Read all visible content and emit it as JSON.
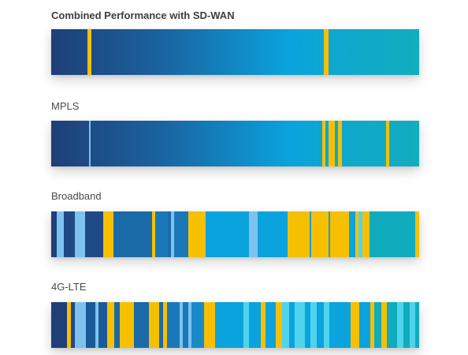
{
  "colors": {
    "navy": "#1f3f77",
    "mid_blue": "#1a78b8",
    "bright_blue": "#0aa3dd",
    "teal": "#10abbd",
    "light_blue": "#7ec2ef",
    "cyan": "#4fd4ee",
    "yellow": "#f6c000"
  },
  "panels": [
    {
      "title": "Combined Performance with SD-WAN",
      "bold": true,
      "background": "linear-gradient(90deg, #1f3f77 0%, #1a63a0 30%, #0aa3dd 65%, #0ea7d2 75%, #12adbd 100%)",
      "segments": [
        {
          "start": 0.099,
          "end": 0.11,
          "color": "#f6c000"
        },
        {
          "start": 0.741,
          "end": 0.753,
          "color": "#f6c000"
        }
      ]
    },
    {
      "title": "MPLS",
      "bold": false,
      "background": "linear-gradient(90deg, #1f3f77 0%, #1a63a0 30%, #0aa3dd 65%, #0ea7d2 75%, #12adbd 100%)",
      "segments": [
        {
          "start": 0.103,
          "end": 0.108,
          "color": "#7ec2ef"
        },
        {
          "start": 0.737,
          "end": 0.746,
          "color": "#f6c000"
        },
        {
          "start": 0.754,
          "end": 0.77,
          "color": "#f6c000"
        },
        {
          "start": 0.78,
          "end": 0.79,
          "color": "#f6c000"
        },
        {
          "start": 0.91,
          "end": 0.918,
          "color": "#f6c000"
        }
      ]
    },
    {
      "title": "Broadband",
      "bold": false,
      "background": "#1a6aa8",
      "segments": [
        {
          "start": 0.0,
          "end": 0.015,
          "color": "#1f3f77"
        },
        {
          "start": 0.015,
          "end": 0.034,
          "color": "#7ec2ef"
        },
        {
          "start": 0.034,
          "end": 0.064,
          "color": "#1f4a85"
        },
        {
          "start": 0.064,
          "end": 0.092,
          "color": "#7ec2ef"
        },
        {
          "start": 0.092,
          "end": 0.141,
          "color": "#1f4a85"
        },
        {
          "start": 0.141,
          "end": 0.169,
          "color": "#f6c000"
        },
        {
          "start": 0.169,
          "end": 0.274,
          "color": "#1a6aa8"
        },
        {
          "start": 0.274,
          "end": 0.282,
          "color": "#f6c000"
        },
        {
          "start": 0.282,
          "end": 0.317,
          "color": "#1a78b8"
        },
        {
          "start": 0.325,
          "end": 0.334,
          "color": "#7ec2ef"
        },
        {
          "start": 0.334,
          "end": 0.372,
          "color": "#1a78b8"
        },
        {
          "start": 0.372,
          "end": 0.42,
          "color": "#f6c000"
        },
        {
          "start": 0.42,
          "end": 0.537,
          "color": "#0aa3dd"
        },
        {
          "start": 0.537,
          "end": 0.561,
          "color": "#7ec2ef"
        },
        {
          "start": 0.561,
          "end": 0.642,
          "color": "#0aa3dd"
        },
        {
          "start": 0.642,
          "end": 0.702,
          "color": "#f6c000"
        },
        {
          "start": 0.702,
          "end": 0.706,
          "color": "#0aa3dd"
        },
        {
          "start": 0.706,
          "end": 0.754,
          "color": "#f6c000"
        },
        {
          "start": 0.754,
          "end": 0.758,
          "color": "#0aa3dd"
        },
        {
          "start": 0.758,
          "end": 0.81,
          "color": "#f6c000"
        },
        {
          "start": 0.81,
          "end": 0.826,
          "color": "#0aa3dd"
        },
        {
          "start": 0.826,
          "end": 0.836,
          "color": "#f6c000"
        },
        {
          "start": 0.836,
          "end": 0.846,
          "color": "#4fd4ee"
        },
        {
          "start": 0.846,
          "end": 0.866,
          "color": "#f6c000"
        },
        {
          "start": 0.866,
          "end": 0.99,
          "color": "#10abbd"
        },
        {
          "start": 0.99,
          "end": 1.0,
          "color": "#f6c000"
        }
      ]
    },
    {
      "title": "4G-LTE",
      "bold": false,
      "background": "#1a78b8",
      "segments": [
        {
          "start": 0.0,
          "end": 0.043,
          "color": "#1f3f77"
        },
        {
          "start": 0.043,
          "end": 0.054,
          "color": "#f6c000"
        },
        {
          "start": 0.054,
          "end": 0.064,
          "color": "#1f4a85"
        },
        {
          "start": 0.064,
          "end": 0.094,
          "color": "#7ec2ef"
        },
        {
          "start": 0.094,
          "end": 0.12,
          "color": "#1a5a98"
        },
        {
          "start": 0.12,
          "end": 0.128,
          "color": "#7ec2ef"
        },
        {
          "start": 0.128,
          "end": 0.152,
          "color": "#1a5a98"
        },
        {
          "start": 0.152,
          "end": 0.171,
          "color": "#f6c000"
        },
        {
          "start": 0.171,
          "end": 0.186,
          "color": "#1a6aa8"
        },
        {
          "start": 0.186,
          "end": 0.224,
          "color": "#f6c000"
        },
        {
          "start": 0.224,
          "end": 0.266,
          "color": "#1a6aa8"
        },
        {
          "start": 0.266,
          "end": 0.294,
          "color": "#f6c000"
        },
        {
          "start": 0.294,
          "end": 0.304,
          "color": "#1a6aa8"
        },
        {
          "start": 0.304,
          "end": 0.315,
          "color": "#f6c000"
        },
        {
          "start": 0.315,
          "end": 0.348,
          "color": "#1a78b8"
        },
        {
          "start": 0.348,
          "end": 0.357,
          "color": "#7ec2ef"
        },
        {
          "start": 0.357,
          "end": 0.372,
          "color": "#1a78b8"
        },
        {
          "start": 0.372,
          "end": 0.381,
          "color": "#7ec2ef"
        },
        {
          "start": 0.381,
          "end": 0.415,
          "color": "#1a8ac8"
        },
        {
          "start": 0.415,
          "end": 0.445,
          "color": "#f6c000"
        },
        {
          "start": 0.445,
          "end": 0.522,
          "color": "#0aa3dd"
        },
        {
          "start": 0.522,
          "end": 0.538,
          "color": "#4fd4ee"
        },
        {
          "start": 0.538,
          "end": 0.57,
          "color": "#0aa3dd"
        },
        {
          "start": 0.57,
          "end": 0.582,
          "color": "#f6c000"
        },
        {
          "start": 0.582,
          "end": 0.61,
          "color": "#0aa3dd"
        },
        {
          "start": 0.61,
          "end": 0.627,
          "color": "#f6c000"
        },
        {
          "start": 0.627,
          "end": 0.646,
          "color": "#4fd4ee"
        },
        {
          "start": 0.646,
          "end": 0.662,
          "color": "#0aa3dd"
        },
        {
          "start": 0.662,
          "end": 0.69,
          "color": "#4fd4ee"
        },
        {
          "start": 0.69,
          "end": 0.704,
          "color": "#0aa3dd"
        },
        {
          "start": 0.704,
          "end": 0.722,
          "color": "#4fd4ee"
        },
        {
          "start": 0.722,
          "end": 0.741,
          "color": "#0aa3dd"
        },
        {
          "start": 0.741,
          "end": 0.756,
          "color": "#4fd4ee"
        },
        {
          "start": 0.756,
          "end": 0.814,
          "color": "#0aa3dd"
        },
        {
          "start": 0.814,
          "end": 0.838,
          "color": "#f6c000"
        },
        {
          "start": 0.838,
          "end": 0.868,
          "color": "#0aa3dd"
        },
        {
          "start": 0.868,
          "end": 0.878,
          "color": "#f6c000"
        },
        {
          "start": 0.878,
          "end": 0.898,
          "color": "#10abbd"
        },
        {
          "start": 0.898,
          "end": 0.912,
          "color": "#f6c000"
        },
        {
          "start": 0.912,
          "end": 0.94,
          "color": "#10abbd"
        },
        {
          "start": 0.94,
          "end": 0.958,
          "color": "#4fd4ee"
        },
        {
          "start": 0.958,
          "end": 0.974,
          "color": "#10abbd"
        },
        {
          "start": 0.974,
          "end": 0.99,
          "color": "#4fd4ee"
        },
        {
          "start": 0.99,
          "end": 1.0,
          "color": "#10abbd"
        }
      ]
    }
  ]
}
